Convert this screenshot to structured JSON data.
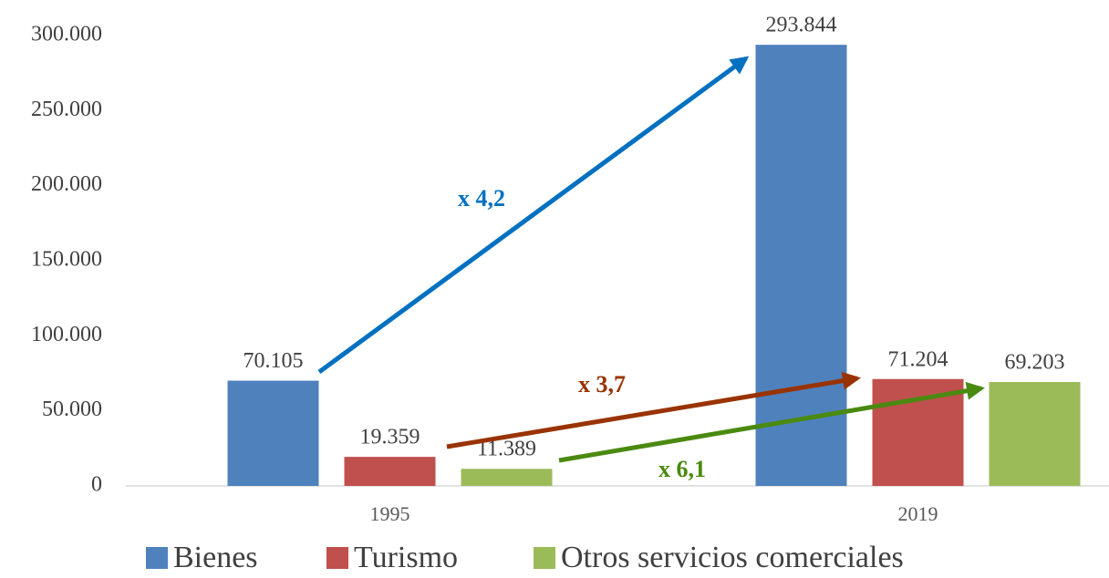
{
  "chart_data": {
    "type": "bar",
    "categories": [
      "1995",
      "2019"
    ],
    "series": [
      {
        "name": "Bienes",
        "color": "#4f81bd",
        "values": [
          70105,
          293844
        ],
        "value_labels": [
          "70.105",
          "293.844"
        ]
      },
      {
        "name": "Turismo",
        "color": "#c0504d",
        "values": [
          19359,
          71204
        ],
        "value_labels": [
          "19.359",
          "71.204"
        ]
      },
      {
        "name": "Otros servicios comerciales",
        "color": "#9bbb59",
        "values": [
          11389,
          69203
        ],
        "value_labels": [
          "11.389",
          "69.203"
        ]
      }
    ],
    "ylim": [
      0,
      300000
    ],
    "yticks": [
      0,
      {
        "value": 50000,
        "label": "50.000"
      },
      {
        "value": 100000,
        "label": "100.000"
      },
      {
        "value": 150000,
        "label": "150.000"
      },
      {
        "value": 200000,
        "label": "200.000"
      },
      {
        "value": 250000,
        "label": "250.000"
      },
      {
        "value": 300000,
        "label": "300.000"
      }
    ],
    "grid": false,
    "legend": "bottom",
    "annotations": [
      {
        "text": "x 4,2",
        "color": "#0070c0"
      },
      {
        "text": "x 3,7",
        "color": "#993300"
      },
      {
        "text": "x 6,1",
        "color": "#4a8a10"
      }
    ]
  }
}
